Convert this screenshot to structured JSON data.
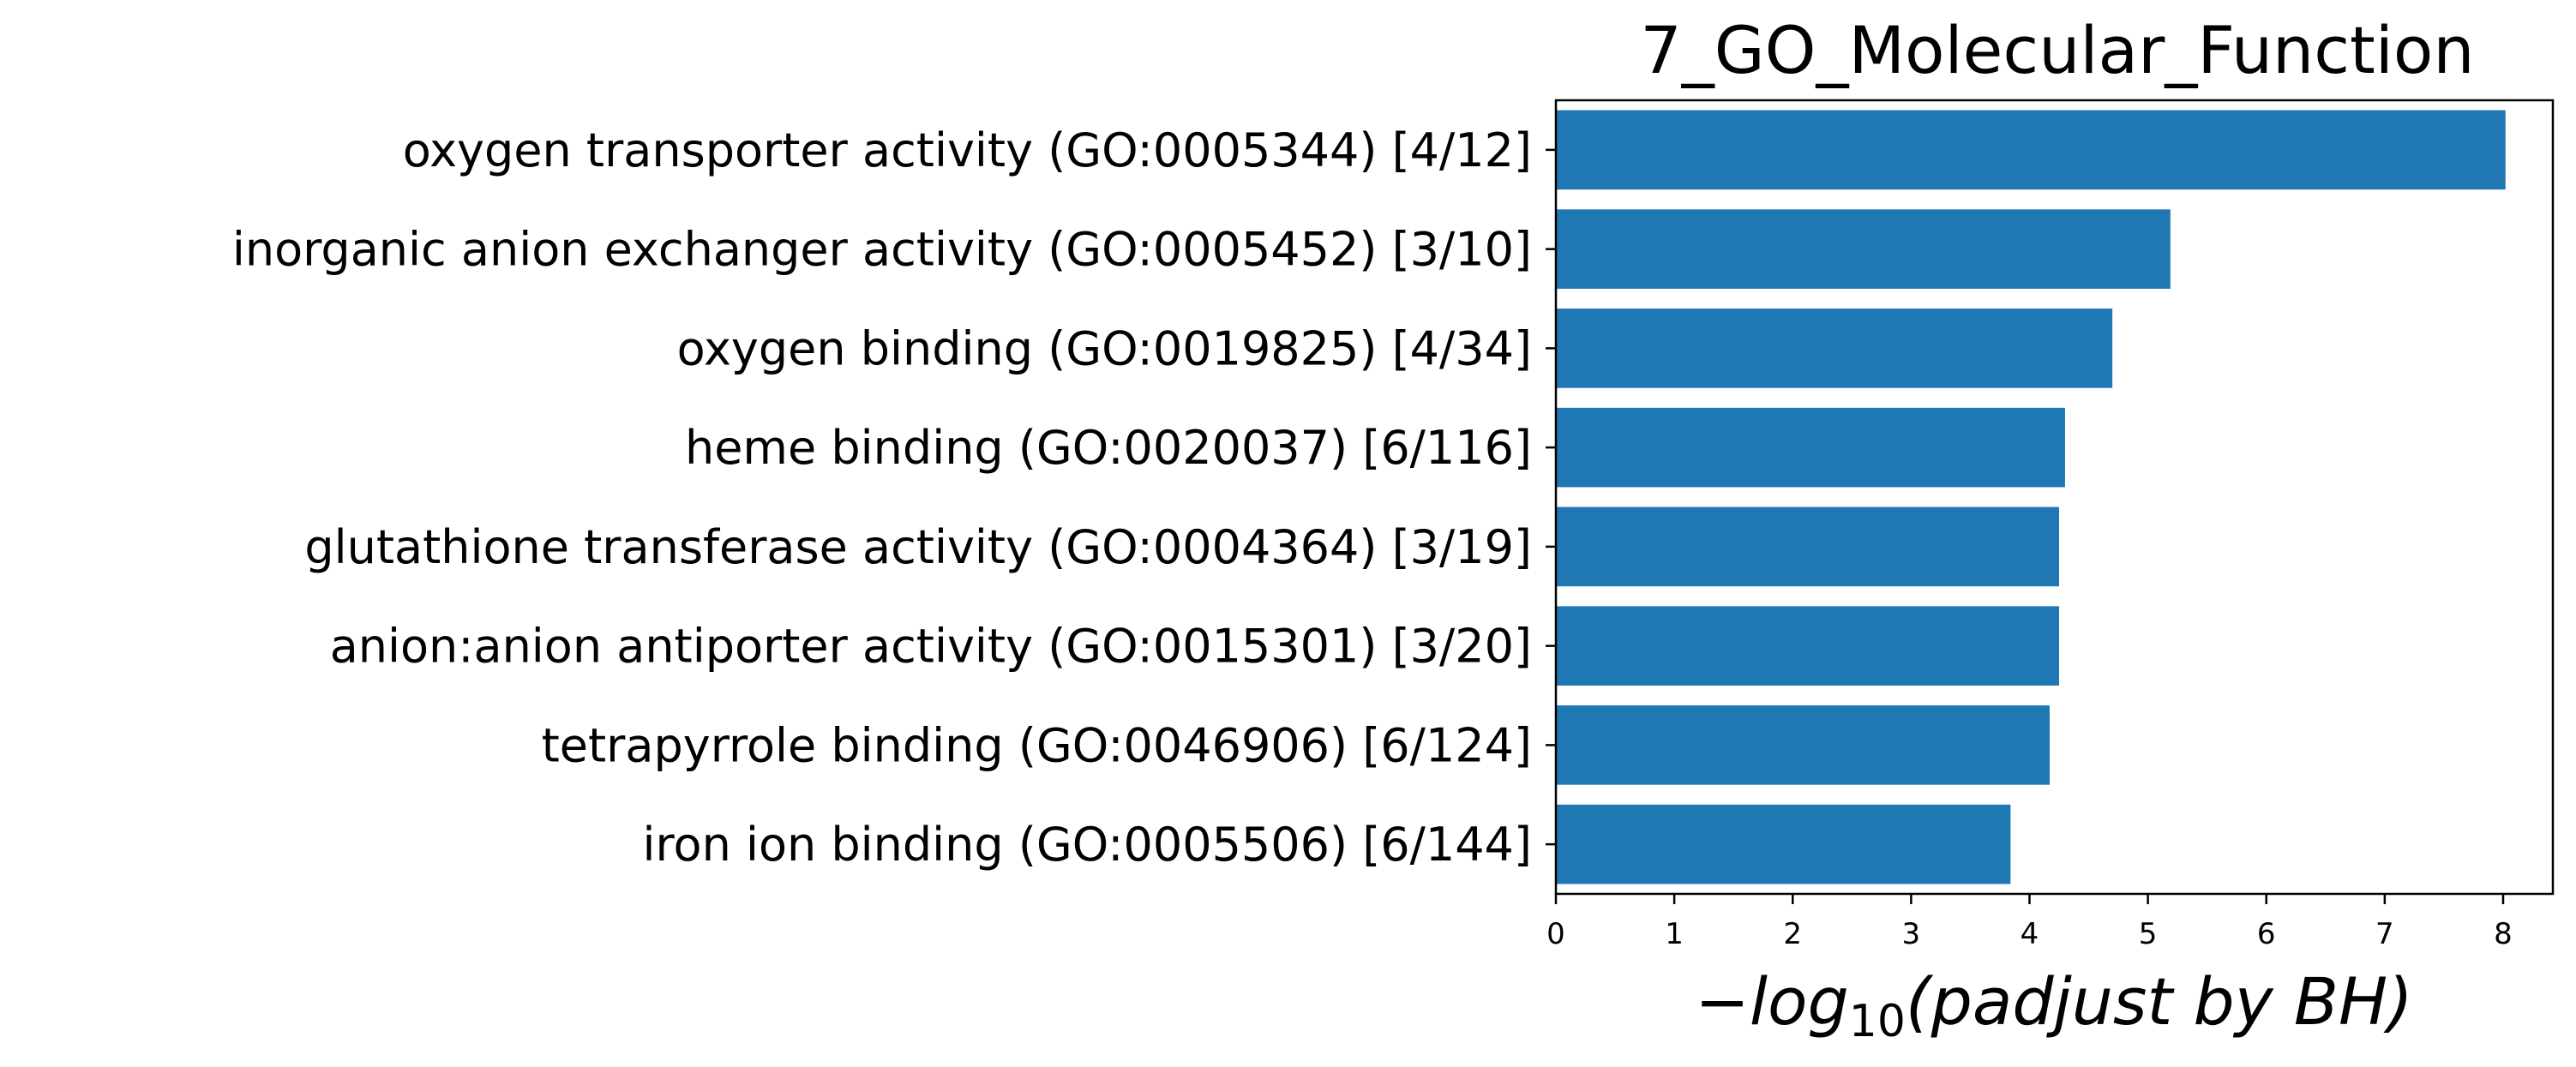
{
  "chart_data": {
    "type": "bar",
    "orientation": "horizontal",
    "title": "7_GO_Molecular_Function",
    "xlabel_parts": {
      "prefix": "−log",
      "subscript": "10",
      "suffix": "(padjust by BH)"
    },
    "ylabel": "",
    "categories": [
      "oxygen transporter activity (GO:0005344) [4/12]",
      "inorganic anion exchanger activity (GO:0005452) [3/10]",
      "oxygen binding (GO:0019825) [4/34]",
      "heme binding (GO:0020037) [6/116]",
      "glutathione transferase activity (GO:0004364) [3/19]",
      "anion:anion antiporter activity (GO:0015301) [3/20]",
      "tetrapyrrole binding (GO:0046906) [6/124]",
      "iron ion binding (GO:0005506) [6/144]"
    ],
    "values": [
      8.02,
      5.19,
      4.7,
      4.3,
      4.25,
      4.25,
      4.17,
      3.84
    ],
    "xlim": [
      0,
      8.42
    ],
    "xticks": [
      "0",
      "1",
      "2",
      "3",
      "4",
      "5",
      "6",
      "7",
      "8"
    ],
    "grid": false,
    "legend": "none",
    "bar_color": "#1f77b4"
  }
}
